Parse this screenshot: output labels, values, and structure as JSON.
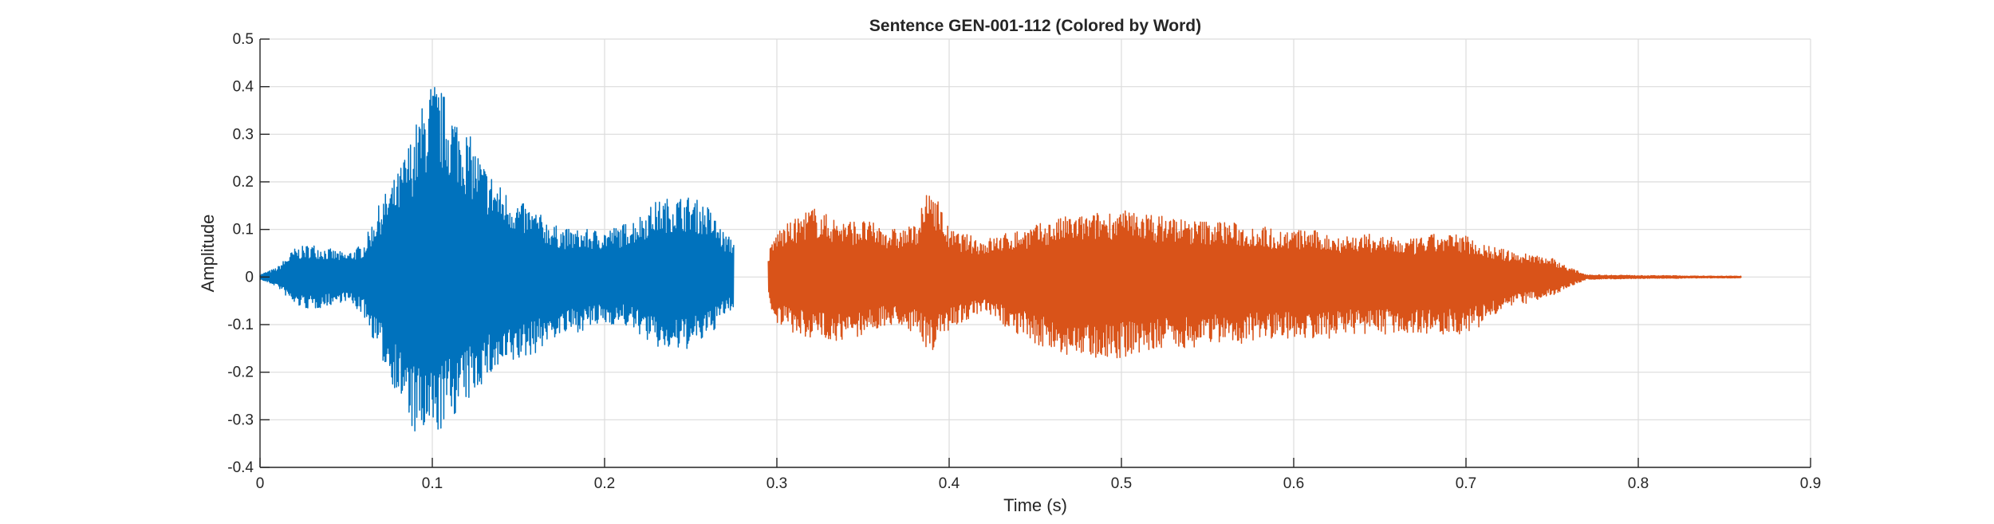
{
  "chart_data": {
    "type": "line",
    "title": "Sentence GEN-001-112 (Colored by Word)",
    "xlabel": "Time (s)",
    "ylabel": "Amplitude",
    "xlim": [
      0,
      0.9
    ],
    "ylim": [
      -0.4,
      0.5
    ],
    "xticks": [
      0,
      0.1,
      0.2,
      0.3,
      0.4,
      0.5,
      0.6,
      0.7,
      0.8,
      0.9
    ],
    "xtick_labels": [
      "0",
      "0.1",
      "0.2",
      "0.3",
      "0.4",
      "0.5",
      "0.6",
      "0.7",
      "0.8",
      "0.9"
    ],
    "yticks": [
      -0.4,
      -0.3,
      -0.2,
      -0.1,
      0,
      0.1,
      0.2,
      0.3,
      0.4,
      0.5
    ],
    "ytick_labels": [
      "-0.4",
      "-0.3",
      "-0.2",
      "-0.1",
      "0",
      "0.1",
      "0.2",
      "0.3",
      "0.4",
      "0.5"
    ],
    "grid": true,
    "series": [
      {
        "color": "#0072BD",
        "x": [
          0.0,
          0.01,
          0.02,
          0.03,
          0.04,
          0.05,
          0.06,
          0.07,
          0.08,
          0.09,
          0.1,
          0.11,
          0.12,
          0.13,
          0.14,
          0.15,
          0.16,
          0.17,
          0.18,
          0.19,
          0.2,
          0.21,
          0.22,
          0.23,
          0.24,
          0.25,
          0.26,
          0.27,
          0.275
        ],
        "y_max": [
          0.005,
          0.02,
          0.06,
          0.07,
          0.06,
          0.05,
          0.07,
          0.16,
          0.22,
          0.32,
          0.42,
          0.37,
          0.31,
          0.24,
          0.19,
          0.16,
          0.14,
          0.11,
          0.1,
          0.1,
          0.1,
          0.11,
          0.13,
          0.16,
          0.17,
          0.17,
          0.15,
          0.09,
          0.08
        ],
        "y_min": [
          -0.005,
          -0.02,
          -0.06,
          -0.07,
          -0.06,
          -0.05,
          -0.08,
          -0.17,
          -0.25,
          -0.34,
          -0.35,
          -0.3,
          -0.27,
          -0.22,
          -0.2,
          -0.18,
          -0.16,
          -0.13,
          -0.12,
          -0.11,
          -0.1,
          -0.1,
          -0.12,
          -0.15,
          -0.16,
          -0.15,
          -0.13,
          -0.08,
          -0.07
        ]
      },
      {
        "color": "#D95319",
        "x": [
          0.295,
          0.3,
          0.31,
          0.32,
          0.33,
          0.34,
          0.35,
          0.36,
          0.37,
          0.38,
          0.39,
          0.4,
          0.41,
          0.42,
          0.43,
          0.44,
          0.45,
          0.46,
          0.47,
          0.48,
          0.49,
          0.5,
          0.51,
          0.52,
          0.53,
          0.54,
          0.55,
          0.56,
          0.57,
          0.58,
          0.59,
          0.6,
          0.61,
          0.62,
          0.63,
          0.64,
          0.65,
          0.66,
          0.67,
          0.68,
          0.69,
          0.7,
          0.71,
          0.72,
          0.73,
          0.74,
          0.75,
          0.76,
          0.77,
          0.78,
          0.79,
          0.8,
          0.81,
          0.82,
          0.83,
          0.84,
          0.85,
          0.86
        ],
        "y_max": [
          0.05,
          0.1,
          0.12,
          0.15,
          0.13,
          0.12,
          0.12,
          0.11,
          0.1,
          0.11,
          0.2,
          0.1,
          0.09,
          0.08,
          0.09,
          0.1,
          0.11,
          0.12,
          0.13,
          0.13,
          0.14,
          0.14,
          0.14,
          0.13,
          0.13,
          0.12,
          0.12,
          0.12,
          0.11,
          0.11,
          0.1,
          0.1,
          0.1,
          0.09,
          0.09,
          0.09,
          0.09,
          0.08,
          0.08,
          0.09,
          0.09,
          0.09,
          0.07,
          0.06,
          0.05,
          0.05,
          0.04,
          0.02,
          0.005,
          0.004,
          0.004,
          0.003,
          0.003,
          0.003,
          0.002,
          0.002,
          0.002,
          0.002
        ],
        "y_min": [
          -0.05,
          -0.1,
          -0.12,
          -0.13,
          -0.13,
          -0.14,
          -0.12,
          -0.11,
          -0.1,
          -0.12,
          -0.16,
          -0.11,
          -0.09,
          -0.08,
          -0.1,
          -0.12,
          -0.14,
          -0.16,
          -0.17,
          -0.17,
          -0.17,
          -0.17,
          -0.16,
          -0.16,
          -0.15,
          -0.15,
          -0.14,
          -0.14,
          -0.14,
          -0.13,
          -0.13,
          -0.13,
          -0.13,
          -0.13,
          -0.12,
          -0.12,
          -0.12,
          -0.12,
          -0.12,
          -0.12,
          -0.12,
          -0.12,
          -0.1,
          -0.08,
          -0.06,
          -0.05,
          -0.04,
          -0.02,
          -0.005,
          -0.004,
          -0.004,
          -0.003,
          -0.003,
          -0.003,
          -0.002,
          -0.002,
          -0.002,
          -0.002
        ]
      }
    ]
  }
}
